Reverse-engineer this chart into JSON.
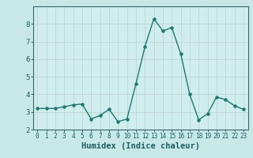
{
  "x": [
    0,
    1,
    2,
    3,
    4,
    5,
    6,
    7,
    8,
    9,
    10,
    11,
    12,
    13,
    14,
    15,
    16,
    17,
    18,
    19,
    20,
    21,
    22,
    23
  ],
  "y": [
    3.2,
    3.2,
    3.2,
    3.3,
    3.4,
    3.45,
    2.6,
    2.8,
    3.15,
    2.45,
    2.6,
    4.6,
    6.7,
    8.3,
    7.6,
    7.8,
    6.3,
    4.0,
    2.55,
    2.9,
    3.85,
    3.7,
    3.35,
    3.15
  ],
  "xlabel": "Humidex (Indice chaleur)",
  "ylim": [
    2,
    9
  ],
  "xlim": [
    -0.5,
    23.5
  ],
  "yticks": [
    2,
    3,
    4,
    5,
    6,
    7,
    8
  ],
  "xticks": [
    0,
    1,
    2,
    3,
    4,
    5,
    6,
    7,
    8,
    9,
    10,
    11,
    12,
    13,
    14,
    15,
    16,
    17,
    18,
    19,
    20,
    21,
    22,
    23
  ],
  "line_color": "#1a7a6e",
  "bg_color": "#d0eded",
  "grid_color": "#c0d4d4",
  "axis_bg": "#c8e8e8",
  "xlabel_fontsize": 7.5,
  "tick_fontsize": 5.5,
  "ytick_fontsize": 6.5
}
